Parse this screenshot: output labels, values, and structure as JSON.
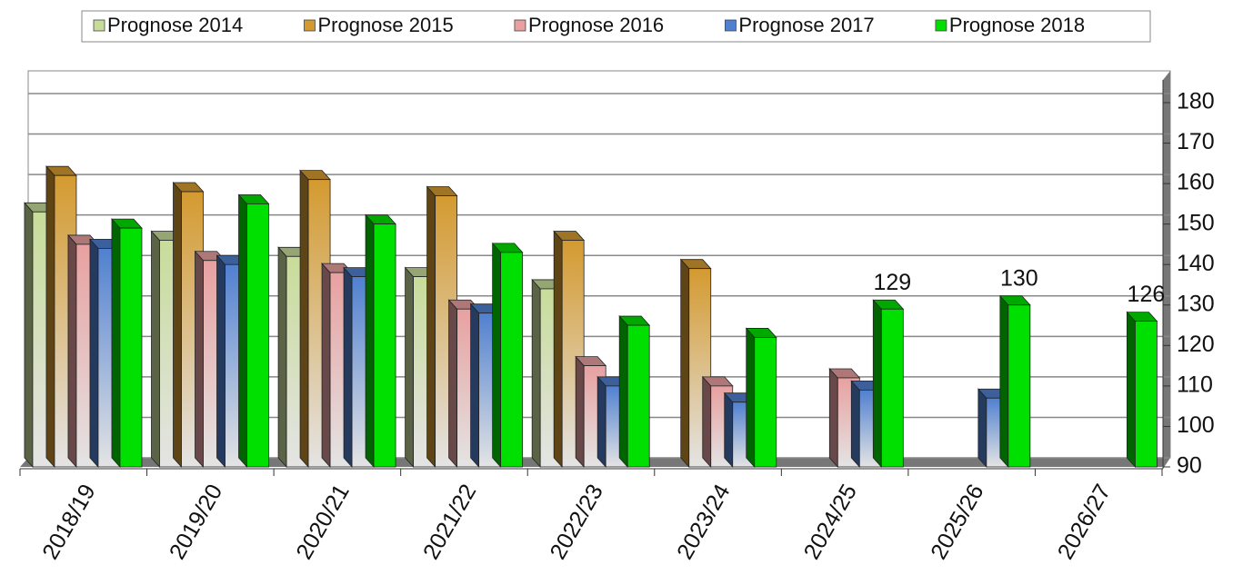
{
  "chart_data": {
    "type": "bar3d",
    "categories": [
      "2018/19",
      "2019/20",
      "2020/21",
      "2021/22",
      "2022/23",
      "2023/24",
      "2024/25",
      "2025/26",
      "2026/27"
    ],
    "series": [
      {
        "name": "Prognose 2014",
        "color": "#c8dc9a",
        "values": [
          153,
          146,
          142,
          137,
          134,
          null,
          null,
          null,
          null
        ]
      },
      {
        "name": "Prognose 2015",
        "color": "#d49a30",
        "values": [
          162,
          158,
          161,
          157,
          146,
          139,
          null,
          null,
          null
        ]
      },
      {
        "name": "Prognose 2016",
        "color": "#e8a0a0",
        "values": [
          145,
          141,
          138,
          129,
          115,
          110,
          112,
          null,
          null
        ]
      },
      {
        "name": "Prognose 2017",
        "color": "#5080d0",
        "values": [
          144,
          140,
          137,
          128,
          110,
          106,
          109,
          107,
          null
        ]
      },
      {
        "name": "Prognose 2018",
        "color": "#00e000",
        "values": [
          149,
          155,
          150,
          143,
          125,
          122,
          129,
          130,
          126
        ],
        "value_labels": [
          null,
          null,
          null,
          null,
          null,
          null,
          "129",
          "130",
          "126"
        ]
      }
    ],
    "ylim": [
      90,
      180
    ],
    "yticks": [
      90,
      100,
      110,
      120,
      130,
      140,
      150,
      160,
      170,
      180
    ],
    "grid": true,
    "legend": "top"
  }
}
